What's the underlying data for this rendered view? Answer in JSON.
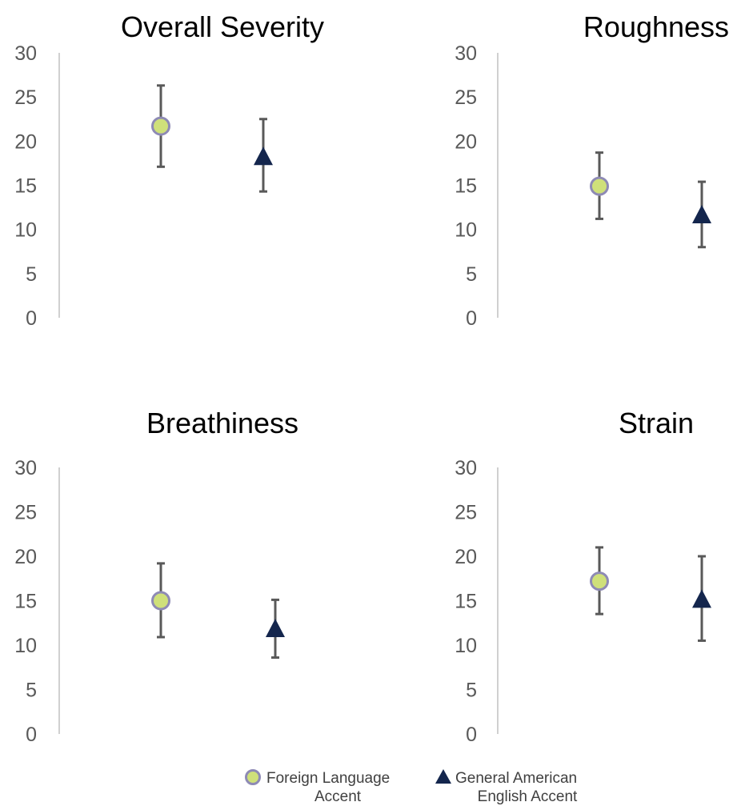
{
  "colors": {
    "foreign_marker_fill": "#cfe07a",
    "foreign_marker_stroke": "#8e8ab5",
    "american_marker": "#14264d",
    "error_bar": "#595959",
    "axis": "#d0d0d0",
    "tick_text": "#595959"
  },
  "legend": {
    "placement": "bottom-center",
    "items": [
      {
        "marker": "circle",
        "line1": "Foreign Language",
        "line2": "Accent"
      },
      {
        "marker": "triangle",
        "line1": "General American",
        "line2": "English Accent"
      }
    ]
  },
  "chart_data": [
    {
      "type": "scatter",
      "title": "Overall Severity",
      "ylim": [
        0,
        30
      ],
      "yticks": [
        "0",
        "5",
        "10",
        "15",
        "20",
        "25",
        "30"
      ],
      "grid": false,
      "series": [
        {
          "marker": "circle",
          "value": 21.7,
          "err_low": 17.1,
          "err_high": 26.3
        },
        {
          "marker": "triangle",
          "value": 18.2,
          "err_low": 14.3,
          "err_high": 22.5
        }
      ]
    },
    {
      "type": "scatter",
      "title": "Roughness",
      "ylim": [
        0,
        30
      ],
      "yticks": [
        "0",
        "5",
        "10",
        "15",
        "20",
        "25",
        "30"
      ],
      "grid": false,
      "series": [
        {
          "marker": "circle",
          "value": 14.9,
          "err_low": 11.2,
          "err_high": 18.7
        },
        {
          "marker": "triangle",
          "value": 11.6,
          "err_low": 8.0,
          "err_high": 15.4
        }
      ]
    },
    {
      "type": "scatter",
      "title": "Breathiness",
      "ylim": [
        0,
        30
      ],
      "yticks": [
        "0",
        "5",
        "10",
        "15",
        "20",
        "25",
        "30"
      ],
      "grid": false,
      "series": [
        {
          "marker": "circle",
          "value": 15.0,
          "err_low": 10.9,
          "err_high": 19.2
        },
        {
          "marker": "triangle",
          "value": 11.8,
          "err_low": 8.6,
          "err_high": 15.1
        }
      ]
    },
    {
      "type": "scatter",
      "title": "Strain",
      "ylim": [
        0,
        30
      ],
      "yticks": [
        "0",
        "5",
        "10",
        "15",
        "20",
        "25",
        "30"
      ],
      "grid": false,
      "series": [
        {
          "marker": "circle",
          "value": 17.2,
          "err_low": 13.5,
          "err_high": 21.0
        },
        {
          "marker": "triangle",
          "value": 15.1,
          "err_low": 10.5,
          "err_high": 20.0
        }
      ]
    }
  ]
}
